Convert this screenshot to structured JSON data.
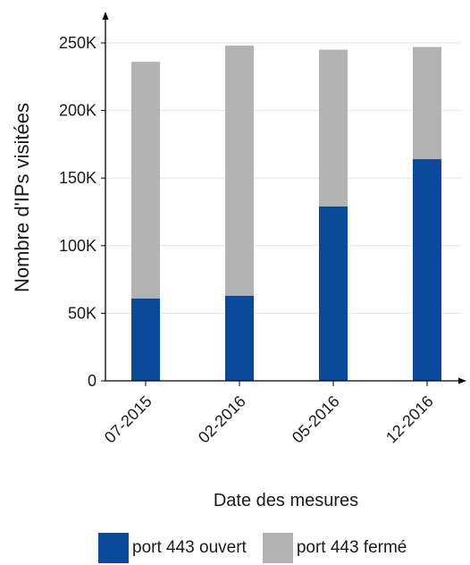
{
  "chart_data": {
    "type": "bar",
    "stacked": true,
    "categories": [
      "07-2015",
      "02-2016",
      "05-2016",
      "12-2016"
    ],
    "series": [
      {
        "name": "port 443 ouvert",
        "color": "#0b4a9a",
        "values": [
          61000,
          63000,
          129000,
          164000
        ]
      },
      {
        "name": "port 443 fermé",
        "color": "#b3b3b3",
        "values": [
          175000,
          185000,
          116000,
          83000
        ]
      }
    ],
    "title": "",
    "xlabel": "Date des mesures",
    "ylabel": "Nombre d'IPs visitées",
    "ylim": [
      0,
      250000
    ],
    "yticks": [
      {
        "value": 0,
        "label": "0"
      },
      {
        "value": 50000,
        "label": "50K"
      },
      {
        "value": 100000,
        "label": "100K"
      },
      {
        "value": 150000,
        "label": "150K"
      },
      {
        "value": 200000,
        "label": "200K"
      },
      {
        "value": 250000,
        "label": "250K"
      }
    ],
    "grid": true,
    "legend_position": "bottom"
  }
}
